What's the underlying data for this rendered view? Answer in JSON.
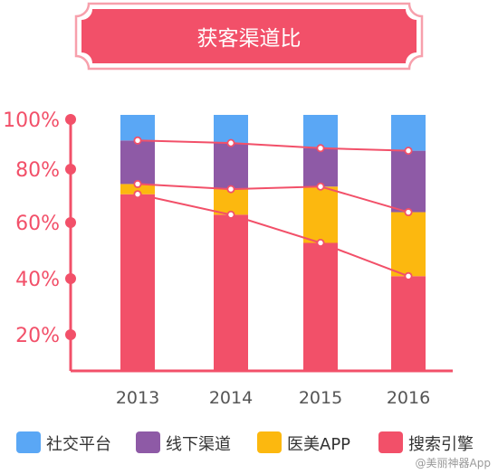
{
  "chart_data": {
    "type": "bar",
    "stacked": true,
    "title": "获客渠道比",
    "categories": [
      "2013",
      "2014",
      "2015",
      "2016"
    ],
    "yticks": [
      "20%",
      "40%",
      "60%",
      "80%",
      "100%"
    ],
    "ylim": [
      0,
      100
    ],
    "series": [
      {
        "name": "搜索引擎",
        "values": [
          69,
          61,
          50,
          37
        ]
      },
      {
        "name": "医美APP",
        "values": [
          4,
          10,
          22,
          25
        ]
      },
      {
        "name": "线下渠道",
        "values": [
          17,
          18,
          15,
          24
        ]
      },
      {
        "name": "社交平台",
        "values": [
          10,
          11,
          13,
          14
        ]
      }
    ],
    "legend_order": [
      "社交平台",
      "线下渠道",
      "医美APP",
      "搜索引擎"
    ],
    "legend_position": "bottom",
    "trend_lines": true
  },
  "colors": {
    "社交平台": "#5aa7f5",
    "线下渠道": "#8e5aa6",
    "医美APP": "#fcb80f",
    "搜索引擎": "#f25069",
    "axis": "#f25069",
    "banner": "#f25069",
    "banner_border": "#f7a0ac"
  },
  "watermark": "@美丽神器App"
}
